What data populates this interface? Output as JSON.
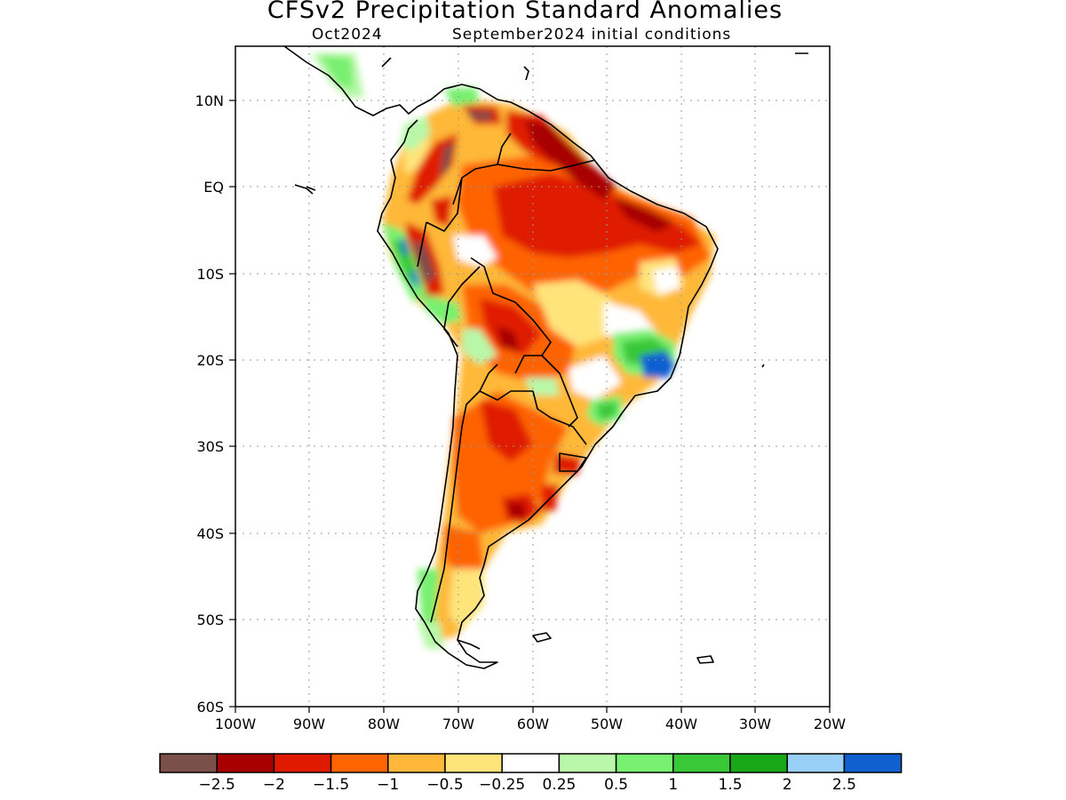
{
  "title": "CFSv2 Precipitation Standard Anomalies",
  "subtitle_month": "Oct2024",
  "subtitle_init": "September2024 initial conditions",
  "map": {
    "region": "South America",
    "lon_range": [
      -100,
      -20
    ],
    "lat_range": [
      -60,
      15
    ],
    "lat_ticks": [
      "10N",
      "EQ",
      "10S",
      "20S",
      "30S",
      "40S",
      "50S",
      "60S"
    ],
    "lon_ticks": [
      "100W",
      "90W",
      "80W",
      "70W",
      "60W",
      "50W",
      "40W",
      "30W",
      "20W"
    ],
    "gridlines": "dotted"
  },
  "colorbar": {
    "colors": [
      "#7a5048",
      "#a80000",
      "#e01a00",
      "#ff6400",
      "#ffb839",
      "#ffe47a",
      "#ffffff",
      "#b8f8a8",
      "#78f070",
      "#38c838",
      "#18a818",
      "#98d0f8",
      "#1060d0"
    ],
    "labels": [
      "−2.5",
      "−2",
      "−1.5",
      "−1",
      "−0.5",
      "−0.25",
      "0.25",
      "0.5",
      "1",
      "1.5",
      "2",
      "2.5"
    ]
  }
}
